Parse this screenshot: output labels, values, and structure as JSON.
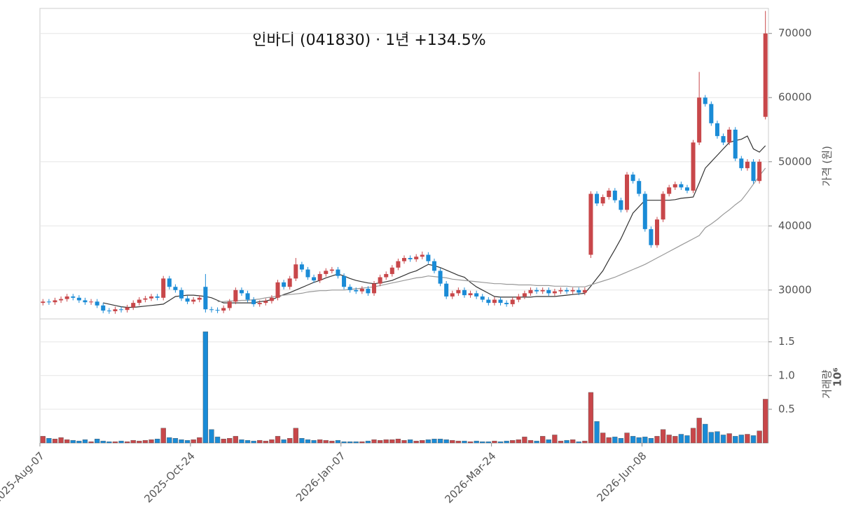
{
  "chart_data": [
    {
      "type": "candlestick",
      "title": "인바디 (041830)  ·  1년 +134.5%",
      "ylabel": "가격 (원)",
      "ylim": [
        25500,
        73900
      ],
      "yticks": [
        30000,
        40000,
        50000,
        60000,
        70000
      ],
      "grid": true,
      "up_color": "#c8474a",
      "down_color": "#1a8bd6",
      "open": [
        28000,
        28200,
        28100,
        28400,
        28600,
        29000,
        28800,
        28400,
        28100,
        28200,
        27600,
        26800,
        26700,
        27000,
        26900,
        27300,
        28000,
        28500,
        28700,
        29000,
        28800,
        31800,
        30500,
        30000,
        28700,
        28200,
        28500,
        30500,
        27000,
        26900,
        26800,
        27200,
        28200,
        30000,
        29500,
        28500,
        27800,
        28000,
        28300,
        28800,
        31200,
        30500,
        31800,
        34000,
        33200,
        32000,
        31500,
        32500,
        33000,
        33200,
        32200,
        30500,
        30000,
        29800,
        30200,
        29500,
        31000,
        32000,
        32500,
        33500,
        34500,
        35000,
        34800,
        35200,
        35500,
        34500,
        33000,
        31000,
        29000,
        29500,
        30000,
        29200,
        29500,
        29000,
        28500,
        28000,
        28500,
        28000,
        27800,
        28500,
        29000,
        29500,
        30000,
        29800,
        30000,
        29500,
        29800,
        30000,
        29800,
        30000,
        29600,
        35500,
        45000,
        43500,
        44500,
        45500,
        44000,
        42500,
        48000,
        47000,
        45000,
        39500,
        37000,
        41000,
        45000,
        46000,
        46500,
        46000,
        45500,
        53000,
        60000,
        59000,
        56000,
        54000,
        53000,
        55000,
        50500,
        49000,
        50000,
        47000,
        57000
      ],
      "high": [
        28600,
        28600,
        28800,
        29000,
        29400,
        29400,
        29200,
        28800,
        28600,
        28600,
        28000,
        27200,
        27400,
        27400,
        27700,
        28400,
        28900,
        29100,
        29400,
        29400,
        32200,
        32200,
        30900,
        30400,
        29100,
        28900,
        29200,
        32500,
        27400,
        27300,
        27600,
        28600,
        30400,
        30400,
        29900,
        28900,
        28400,
        28700,
        29200,
        31600,
        31600,
        32200,
        35000,
        34400,
        33600,
        32400,
        32900,
        33400,
        33600,
        33600,
        32600,
        30900,
        30400,
        30600,
        30600,
        31400,
        32400,
        32900,
        33900,
        34900,
        35400,
        35400,
        35600,
        36000,
        35900,
        34900,
        33400,
        31400,
        29900,
        30400,
        30400,
        29900,
        29900,
        29400,
        28900,
        28900,
        28900,
        28400,
        28900,
        29400,
        29900,
        30400,
        30400,
        30400,
        30400,
        30200,
        30400,
        30400,
        30400,
        30400,
        30400,
        45400,
        45400,
        44900,
        45900,
        45900,
        44400,
        48400,
        48400,
        47400,
        45400,
        39900,
        41400,
        45400,
        46400,
        46900,
        46900,
        46400,
        53400,
        64000,
        60400,
        59400,
        56400,
        54400,
        55400,
        55400,
        50900,
        50400,
        50400,
        50400,
        73500
      ],
      "low": [
        27600,
        27700,
        27700,
        28000,
        28200,
        28400,
        28000,
        27700,
        27700,
        27200,
        26400,
        26300,
        26300,
        26500,
        26500,
        26900,
        27600,
        28100,
        28300,
        28400,
        28400,
        30100,
        29600,
        28300,
        27800,
        27800,
        28100,
        26500,
        26500,
        26400,
        26400,
        26800,
        27800,
        29100,
        28100,
        27400,
        27400,
        27600,
        27900,
        28400,
        30100,
        30100,
        31400,
        32800,
        31600,
        31100,
        31100,
        32100,
        32600,
        31800,
        30100,
        29600,
        29400,
        29400,
        29100,
        29100,
        30600,
        31600,
        32100,
        33100,
        34100,
        34400,
        34400,
        34800,
        34100,
        32600,
        30600,
        28600,
        28600,
        29100,
        28800,
        28800,
        28600,
        28100,
        27600,
        27600,
        27600,
        27400,
        27400,
        28100,
        28600,
        29100,
        29400,
        29400,
        29100,
        29100,
        29400,
        29400,
        29400,
        29200,
        29200,
        35000,
        43100,
        43100,
        44100,
        43600,
        42100,
        42100,
        46600,
        44600,
        39100,
        36600,
        36600,
        40600,
        44600,
        45600,
        45600,
        45100,
        45100,
        52600,
        58600,
        55600,
        53600,
        52600,
        52600,
        50100,
        48600,
        48600,
        46600,
        46600,
        56600
      ],
      "close": [
        28200,
        28100,
        28400,
        28600,
        29000,
        28800,
        28400,
        28100,
        28200,
        27600,
        26800,
        26700,
        27000,
        26900,
        27300,
        28000,
        28500,
        28700,
        29000,
        28800,
        31800,
        30500,
        30000,
        28700,
        28200,
        28500,
        28800,
        27000,
        26900,
        26800,
        27200,
        28200,
        30000,
        29500,
        28500,
        27800,
        28000,
        28300,
        28800,
        31200,
        30500,
        31800,
        34000,
        33200,
        32000,
        31500,
        32500,
        33000,
        33200,
        32200,
        30500,
        30000,
        29800,
        30200,
        29500,
        31000,
        32000,
        32500,
        33500,
        34500,
        35000,
        34800,
        35200,
        35500,
        34500,
        33000,
        31000,
        29000,
        29500,
        30000,
        29200,
        29500,
        29000,
        28500,
        28000,
        28500,
        28000,
        27800,
        28500,
        29000,
        29500,
        30000,
        29800,
        30000,
        29500,
        29800,
        30000,
        29800,
        30000,
        29600,
        30000,
        45000,
        43500,
        44500,
        45500,
        44000,
        42500,
        48000,
        47000,
        45000,
        39500,
        37000,
        41000,
        45000,
        46000,
        46500,
        46000,
        45500,
        53000,
        60000,
        59000,
        56000,
        54000,
        53000,
        55000,
        50500,
        49000,
        50000,
        47000,
        50000,
        70000
      ],
      "series": [
        {
          "color": "#333333",
          "values": [
            null,
            null,
            null,
            null,
            null,
            null,
            null,
            null,
            null,
            null,
            28000,
            27800,
            27600,
            27400,
            27300,
            27300,
            27400,
            27500,
            27600,
            27700,
            27800,
            28400,
            29000,
            29100,
            29200,
            29200,
            29100,
            29000,
            28800,
            28400,
            28000,
            28000,
            28000,
            28000,
            28000,
            28000,
            28200,
            28300,
            28500,
            28900,
            29300,
            29600,
            30000,
            30400,
            30800,
            31200,
            31500,
            31900,
            32200,
            32500,
            32200,
            31800,
            31500,
            31300,
            31100,
            31000,
            31100,
            31300,
            31500,
            31900,
            32300,
            32700,
            33000,
            33500,
            34000,
            33800,
            33500,
            33100,
            32700,
            32300,
            32000,
            31200,
            30500,
            30000,
            29500,
            29000,
            28900,
            28900,
            28900,
            28900,
            28900,
            28900,
            29000,
            29000,
            29000,
            29000,
            29100,
            29200,
            29300,
            29400,
            29500,
            30600,
            31800,
            33000,
            34700,
            36300,
            38000,
            40000,
            42000,
            43000,
            44000,
            44000,
            44000,
            44000,
            44000,
            44100,
            44300,
            44400,
            44500,
            46700,
            49000,
            50000,
            51000,
            52000,
            53000,
            53300,
            53500,
            54000,
            52000,
            51500,
            52500
          ]
        },
        {
          "color": "#999999",
          "values": [
            null,
            null,
            null,
            null,
            null,
            null,
            null,
            null,
            null,
            null,
            null,
            null,
            null,
            null,
            null,
            null,
            null,
            null,
            null,
            null,
            null,
            null,
            null,
            null,
            null,
            null,
            null,
            null,
            null,
            28200,
            28200,
            28300,
            28300,
            28400,
            28400,
            28500,
            28600,
            28800,
            28900,
            29100,
            29200,
            29300,
            29400,
            29500,
            29700,
            29800,
            29900,
            29900,
            30000,
            30000,
            30000,
            30100,
            30200,
            30300,
            30400,
            30500,
            30700,
            30900,
            31100,
            31300,
            31500,
            31700,
            31900,
            32000,
            32200,
            32100,
            32000,
            31900,
            31700,
            31600,
            31500,
            31400,
            31300,
            31200,
            31100,
            31000,
            31000,
            30900,
            30900,
            30800,
            30800,
            30800,
            30700,
            30700,
            30700,
            30600,
            30600,
            30600,
            30500,
            30500,
            30500,
            30800,
            31100,
            31400,
            31700,
            32000,
            32400,
            32800,
            33200,
            33600,
            34000,
            34500,
            35000,
            35500,
            36000,
            36500,
            37000,
            37500,
            38000,
            38500,
            39700,
            40300,
            41000,
            41800,
            42500,
            43300,
            44000,
            45200,
            46500,
            47800,
            49000
          ]
        }
      ]
    },
    {
      "type": "bar",
      "ylabel": "거래량",
      "multiplier": "10⁶",
      "ylim": [
        0,
        1.84
      ],
      "yticks": [
        0.5,
        {
          "value": 1,
          "label": "1.0"
        },
        1.5
      ],
      "grid": true,
      "categories": [
        "2025-Aug-07",
        null,
        null,
        null,
        null,
        null,
        null,
        null,
        null,
        null,
        null,
        null,
        null,
        null,
        null,
        null,
        null,
        null,
        null,
        null,
        null,
        null,
        null,
        null,
        null,
        "2025-Oct-24",
        null,
        null,
        null,
        null,
        null,
        null,
        null,
        null,
        null,
        null,
        null,
        null,
        null,
        null,
        null,
        null,
        null,
        null,
        null,
        null,
        null,
        null,
        null,
        null,
        "2026-Jan-07",
        null,
        null,
        null,
        null,
        null,
        null,
        null,
        null,
        null,
        null,
        null,
        null,
        null,
        null,
        null,
        null,
        null,
        null,
        null,
        null,
        null,
        null,
        null,
        null,
        "2026-Mar-24",
        null,
        null,
        null,
        null,
        null,
        null,
        null,
        null,
        null,
        null,
        null,
        null,
        null,
        null,
        null,
        null,
        null,
        null,
        null,
        null,
        null,
        null,
        null,
        null,
        "2026-Jun-08",
        null,
        null,
        null,
        null,
        null,
        null,
        null,
        null,
        null,
        null,
        null,
        null,
        null,
        null,
        null,
        null,
        null,
        null,
        null,
        null
      ],
      "values": [
        0.1,
        0.07,
        0.06,
        0.08,
        0.05,
        0.04,
        0.03,
        0.05,
        0.02,
        0.06,
        0.03,
        0.02,
        0.02,
        0.03,
        0.02,
        0.04,
        0.03,
        0.04,
        0.05,
        0.06,
        0.22,
        0.08,
        0.07,
        0.05,
        0.04,
        0.05,
        0.08,
        1.65,
        0.2,
        0.09,
        0.06,
        0.07,
        0.1,
        0.05,
        0.04,
        0.03,
        0.04,
        0.03,
        0.05,
        0.1,
        0.05,
        0.07,
        0.22,
        0.07,
        0.05,
        0.04,
        0.05,
        0.04,
        0.03,
        0.04,
        0.02,
        0.02,
        0.02,
        0.02,
        0.03,
        0.05,
        0.04,
        0.05,
        0.05,
        0.06,
        0.04,
        0.05,
        0.03,
        0.04,
        0.05,
        0.06,
        0.06,
        0.05,
        0.04,
        0.03,
        0.03,
        0.02,
        0.03,
        0.02,
        0.02,
        0.03,
        0.02,
        0.03,
        0.04,
        0.05,
        0.09,
        0.04,
        0.03,
        0.1,
        0.05,
        0.12,
        0.03,
        0.04,
        0.05,
        0.02,
        0.03,
        0.75,
        0.32,
        0.15,
        0.08,
        0.09,
        0.07,
        0.15,
        0.1,
        0.08,
        0.09,
        0.07,
        0.1,
        0.2,
        0.12,
        0.1,
        0.13,
        0.11,
        0.22,
        0.37,
        0.28,
        0.16,
        0.17,
        0.12,
        0.14,
        0.1,
        0.12,
        0.13,
        0.11,
        0.18,
        0.65
      ]
    }
  ]
}
